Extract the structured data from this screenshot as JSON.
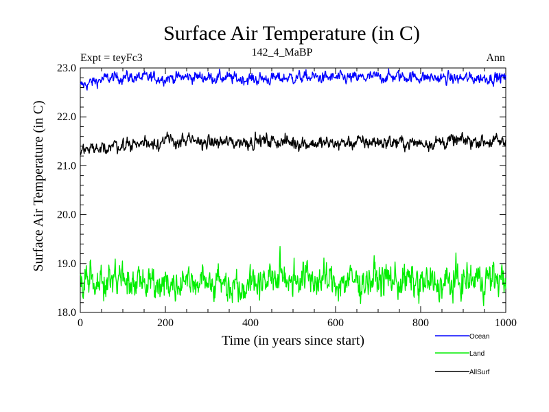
{
  "chart_data": {
    "type": "line",
    "title": "Surface Air Temperature (in C)",
    "subtitle_left": "Expt = teyFc3",
    "subtitle_center": "142_4_MaBP",
    "subtitle_right": "Ann",
    "xlabel": "Time (in years since start)",
    "ylabel": "Surface Air Temperature (in C)",
    "xlim": [
      0,
      1000
    ],
    "ylim": [
      18.0,
      23.0
    ],
    "x_ticks": [
      0,
      200,
      400,
      600,
      800,
      1000
    ],
    "x_tick_labels": [
      "0",
      "200",
      "400",
      "600",
      "800",
      "1000"
    ],
    "y_ticks": [
      18.0,
      19.0,
      20.0,
      21.0,
      22.0,
      23.0
    ],
    "y_tick_labels": [
      "18.0",
      "19.0",
      "20.0",
      "21.0",
      "22.0",
      "23.0"
    ],
    "grid": false,
    "legend_position": "bottom-right",
    "n_points": 1000,
    "series": [
      {
        "name": "Ocean",
        "color": "#0000ff",
        "spin_up_start": 22.62,
        "mean": 22.8,
        "noise_amplitude": 0.06,
        "spin_up_years": 120
      },
      {
        "name": "Land",
        "color": "#00ee00",
        "spin_up_start": 18.55,
        "mean": 18.65,
        "noise_amplitude": 0.18,
        "spin_up_years": 60
      },
      {
        "name": "AllSurf",
        "color": "#000000",
        "spin_up_start": 21.3,
        "mean": 21.48,
        "noise_amplitude": 0.07,
        "spin_up_years": 150
      }
    ]
  }
}
